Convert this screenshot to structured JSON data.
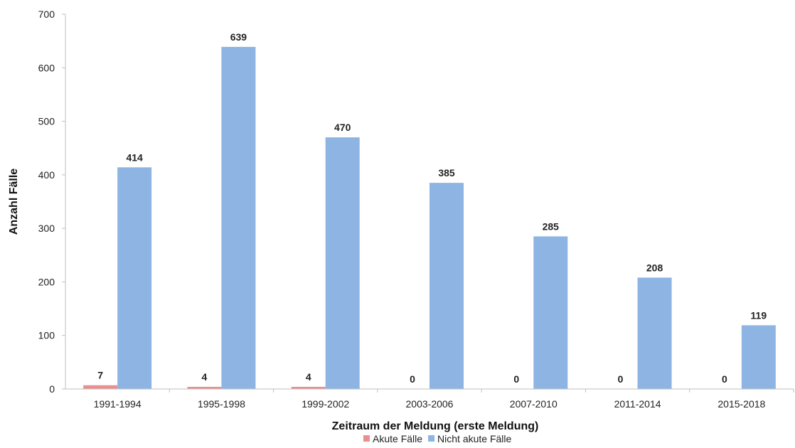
{
  "chart_data": {
    "type": "bar",
    "title": "",
    "xlabel": "Zeitraum der Meldung (erste Meldung)",
    "ylabel": "Anzahl Fälle",
    "ylim": [
      0,
      700
    ],
    "yticks": [
      0,
      100,
      200,
      300,
      400,
      500,
      600,
      700
    ],
    "grid": false,
    "legend_position": "bottom",
    "categories": [
      "1991-1994",
      "1995-1998",
      "1999-2002",
      "2003-2006",
      "2007-2010",
      "2011-2014",
      "2015-2018"
    ],
    "series": [
      {
        "name": "Akute Fälle",
        "color": "#e9908f",
        "values": [
          7,
          4,
          4,
          0,
          0,
          0,
          0
        ]
      },
      {
        "name": "Nicht akute Fälle",
        "color": "#8db4e2",
        "values": [
          414,
          639,
          470,
          385,
          285,
          208,
          119
        ]
      }
    ]
  }
}
